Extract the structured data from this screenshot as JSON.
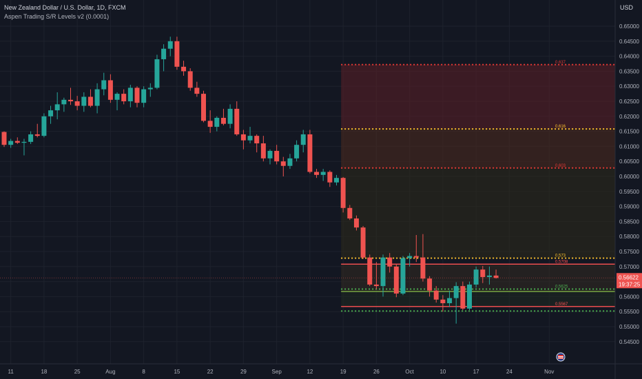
{
  "header": {
    "symbol_line": "New Zealand Dollar / U.S. Dollar, 1D, FXCM",
    "indicator_line": "Aspen Trading S/R Levels v2 (0.0001)",
    "currency": "USD"
  },
  "price_label": {
    "price": "0.56622",
    "countdown": "19:37:25"
  },
  "colors": {
    "background": "#131722",
    "up": "#26a69a",
    "down": "#ef5350",
    "grid": "#1e222d",
    "axis_text": "#b2b5be"
  },
  "chart_data": {
    "type": "candlestick",
    "ylim": [
      0.542,
      0.655
    ],
    "y_ticks": [
      "0.54500",
      "0.55000",
      "0.55500",
      "0.56000",
      "0.56500",
      "0.57000",
      "0.57500",
      "0.58000",
      "0.58500",
      "0.59000",
      "0.59500",
      "0.60000",
      "0.60500",
      "0.61000",
      "0.61500",
      "0.62000",
      "0.62500",
      "0.63000",
      "0.63500",
      "0.64000",
      "0.64500",
      "0.65000"
    ],
    "x_ticks": [
      {
        "i": 1,
        "label": "11"
      },
      {
        "i": 6,
        "label": "18"
      },
      {
        "i": 11,
        "label": "25"
      },
      {
        "i": 16,
        "label": "Aug"
      },
      {
        "i": 21,
        "label": "8"
      },
      {
        "i": 26,
        "label": "15"
      },
      {
        "i": 31,
        "label": "22"
      },
      {
        "i": 36,
        "label": "29"
      },
      {
        "i": 41,
        "label": "Sep"
      },
      {
        "i": 46,
        "label": "12"
      },
      {
        "i": 51,
        "label": "19"
      },
      {
        "i": 56,
        "label": "26"
      },
      {
        "i": 61,
        "label": "Oct"
      },
      {
        "i": 66,
        "label": "10"
      },
      {
        "i": 71,
        "label": "17"
      },
      {
        "i": 76,
        "label": "24"
      },
      {
        "i": 82,
        "label": "Nov"
      }
    ],
    "candles": [
      [
        0.6148,
        0.615,
        0.6098,
        0.6105
      ],
      [
        0.6105,
        0.6125,
        0.6095,
        0.6118
      ],
      [
        0.6118,
        0.613,
        0.6108,
        0.6112
      ],
      [
        0.6112,
        0.6125,
        0.607,
        0.6115
      ],
      [
        0.6115,
        0.615,
        0.6108,
        0.614
      ],
      [
        0.614,
        0.6175,
        0.613,
        0.6135
      ],
      [
        0.6135,
        0.621,
        0.613,
        0.62
      ],
      [
        0.62,
        0.6235,
        0.6175,
        0.622
      ],
      [
        0.622,
        0.628,
        0.619,
        0.624
      ],
      [
        0.624,
        0.6262,
        0.6215,
        0.6255
      ],
      [
        0.6255,
        0.6295,
        0.6238,
        0.625
      ],
      [
        0.625,
        0.6268,
        0.622,
        0.6235
      ],
      [
        0.6235,
        0.628,
        0.6215,
        0.6265
      ],
      [
        0.6265,
        0.629,
        0.623,
        0.6235
      ],
      [
        0.6235,
        0.631,
        0.621,
        0.629
      ],
      [
        0.629,
        0.6345,
        0.627,
        0.632
      ],
      [
        0.632,
        0.634,
        0.6245,
        0.6255
      ],
      [
        0.6255,
        0.628,
        0.622,
        0.6275
      ],
      [
        0.6275,
        0.629,
        0.624,
        0.625
      ],
      [
        0.625,
        0.6305,
        0.623,
        0.6295
      ],
      [
        0.6295,
        0.63,
        0.623,
        0.6245
      ],
      [
        0.6245,
        0.63,
        0.623,
        0.629
      ],
      [
        0.629,
        0.631,
        0.6265,
        0.6295
      ],
      [
        0.6295,
        0.6405,
        0.629,
        0.639
      ],
      [
        0.639,
        0.644,
        0.635,
        0.6425
      ],
      [
        0.6425,
        0.6465,
        0.64,
        0.645
      ],
      [
        0.645,
        0.6465,
        0.6355,
        0.6365
      ],
      [
        0.6365,
        0.6385,
        0.6335,
        0.635
      ],
      [
        0.635,
        0.636,
        0.6285,
        0.6295
      ],
      [
        0.6295,
        0.6315,
        0.6265,
        0.6275
      ],
      [
        0.6275,
        0.6285,
        0.618,
        0.6185
      ],
      [
        0.6185,
        0.622,
        0.6145,
        0.6165
      ],
      [
        0.6165,
        0.62,
        0.615,
        0.6195
      ],
      [
        0.6195,
        0.6225,
        0.617,
        0.6175
      ],
      [
        0.6175,
        0.624,
        0.616,
        0.6225
      ],
      [
        0.6225,
        0.625,
        0.6135,
        0.614
      ],
      [
        0.614,
        0.6155,
        0.609,
        0.612
      ],
      [
        0.612,
        0.6165,
        0.611,
        0.6135
      ],
      [
        0.6135,
        0.614,
        0.608,
        0.611
      ],
      [
        0.611,
        0.6135,
        0.605,
        0.606
      ],
      [
        0.606,
        0.609,
        0.604,
        0.6085
      ],
      [
        0.6085,
        0.6105,
        0.604,
        0.605
      ],
      [
        0.605,
        0.6065,
        0.6,
        0.6035
      ],
      [
        0.6035,
        0.6075,
        0.6025,
        0.606
      ],
      [
        0.606,
        0.612,
        0.605,
        0.6105
      ],
      [
        0.6105,
        0.6155,
        0.608,
        0.614
      ],
      [
        0.614,
        0.6155,
        0.601,
        0.6015
      ],
      [
        0.6015,
        0.6025,
        0.5995,
        0.6005
      ],
      [
        0.6005,
        0.6025,
        0.5985,
        0.6015
      ],
      [
        0.6015,
        0.602,
        0.5965,
        0.598
      ],
      [
        0.598,
        0.6005,
        0.597,
        0.5995
      ],
      [
        0.5995,
        0.5998,
        0.588,
        0.5895
      ],
      [
        0.5895,
        0.5905,
        0.5855,
        0.586
      ],
      [
        0.586,
        0.587,
        0.582,
        0.583
      ],
      [
        0.583,
        0.5835,
        0.5725,
        0.573
      ],
      [
        0.573,
        0.574,
        0.5635,
        0.564
      ],
      [
        0.564,
        0.5715,
        0.5625,
        0.5635
      ],
      [
        0.5635,
        0.574,
        0.56,
        0.573
      ],
      [
        0.573,
        0.5745,
        0.568,
        0.57
      ],
      [
        0.57,
        0.5708,
        0.5598,
        0.561
      ],
      [
        0.561,
        0.5735,
        0.5605,
        0.5728
      ],
      [
        0.5728,
        0.5745,
        0.57,
        0.5735
      ],
      [
        0.5735,
        0.5805,
        0.5715,
        0.573
      ],
      [
        0.573,
        0.5808,
        0.565,
        0.566
      ],
      [
        0.566,
        0.5668,
        0.56,
        0.562
      ],
      [
        0.562,
        0.5635,
        0.558,
        0.559
      ],
      [
        0.559,
        0.5605,
        0.555,
        0.5578
      ],
      [
        0.5578,
        0.562,
        0.5565,
        0.5595
      ],
      [
        0.5595,
        0.5648,
        0.551,
        0.5635
      ],
      [
        0.5635,
        0.565,
        0.5555,
        0.556
      ],
      [
        0.556,
        0.565,
        0.5555,
        0.564
      ],
      [
        0.564,
        0.57,
        0.563,
        0.569
      ],
      [
        0.569,
        0.5702,
        0.5645,
        0.5665
      ],
      [
        0.5665,
        0.57,
        0.564,
        0.567
      ],
      [
        0.567,
        0.569,
        0.566,
        0.5662
      ]
    ],
    "levels": [
      {
        "label": "0.637",
        "value": 0.6372,
        "color": "#e53935",
        "style": "dotted"
      },
      {
        "label": "0.616",
        "value": 0.6158,
        "color": "#fbc02d",
        "style": "dotted"
      },
      {
        "label": "0.603",
        "value": 0.6028,
        "color": "#e53935",
        "style": "dotted"
      },
      {
        "label": "0.573",
        "value": 0.5728,
        "color": "#fbc02d",
        "style": "dotted"
      },
      {
        "label": "0.5708",
        "value": 0.5708,
        "color": "#ff5252",
        "style": "solid"
      },
      {
        "label": "0.5625",
        "value": 0.5625,
        "color": "#4caf50",
        "style": "dotted"
      },
      {
        "label": "",
        "value": 0.5617,
        "color": "#8bc34a",
        "style": "solid"
      },
      {
        "label": "0.5567",
        "value": 0.5567,
        "color": "#ff5252",
        "style": "solid"
      },
      {
        "label": "",
        "value": 0.5552,
        "color": "#4caf50",
        "style": "dotted"
      }
    ],
    "zones": [
      {
        "from": 0.6372,
        "to": 0.6158,
        "color": "#5c1f27"
      },
      {
        "from": 0.6158,
        "to": 0.6028,
        "color": "#4e2a1d"
      },
      {
        "from": 0.6028,
        "to": 0.5728,
        "color": "#2e2a1a"
      },
      {
        "from": 0.5708,
        "to": 0.5617,
        "color": "#332a20"
      },
      {
        "from": 0.5617,
        "to": 0.5567,
        "color": "#1f2a20"
      }
    ],
    "zone_start_index": 51
  }
}
